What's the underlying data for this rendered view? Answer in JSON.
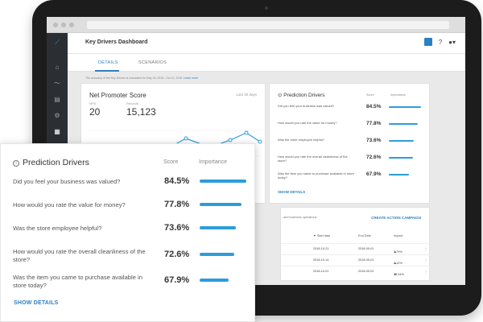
{
  "app": {
    "title": "Key Drivers Dashboard",
    "tabs": [
      {
        "label": "DETAILS",
        "active": true
      },
      {
        "label": "SCENARIOS",
        "active": false
      }
    ],
    "info_text": "The accuracy of the Key Drivers is calculated for May 26, 2018 - Oct 11, 2018.",
    "info_link": "Learn more"
  },
  "header_icons": [
    "tool-icon",
    "help-icon",
    "account-icon"
  ],
  "sidebar_icons": [
    "home-icon",
    "trend-icon",
    "calendar-icon",
    "settings-icon",
    "grid-icon",
    "list-icon",
    "list-icon",
    "list-icon"
  ],
  "nps": {
    "title": "Net Promoter Score",
    "range": "Last 30 days",
    "labels": [
      "NPS",
      "Records"
    ],
    "values": [
      "20",
      "15,123"
    ]
  },
  "prediction_drivers": {
    "title": "Prediction Drivers",
    "score_header": "Score",
    "importance_header": "Importance",
    "rows": [
      {
        "question": "Did you feel your business was valued?",
        "score": "84.5%",
        "importance": 1.0
      },
      {
        "question": "How would you rate the value for money?",
        "score": "77.8%",
        "importance": 0.9
      },
      {
        "question": "Was the store employee helpful?",
        "score": "73.6%",
        "importance": 0.78
      },
      {
        "question": "How would you rate the overall cleanliness of the store?",
        "score": "72.6%",
        "importance": 0.74
      },
      {
        "question": "Was the item you came to purchase available in store today?",
        "score": "67.9%",
        "importance": 0.62
      }
    ],
    "show_details": "SHOW DETAILS"
  },
  "table": {
    "subtitle": "...and business operations.",
    "action": "CREATE ACTION CAMPAIGN",
    "headers": [
      "Start date",
      "End Date",
      "Impact"
    ],
    "rows": [
      {
        "start": "2018-10-21",
        "end": "2018-09-01",
        "direction": "up",
        "impact": "3.79%"
      },
      {
        "start": "2018-10-14",
        "end": "2018-09-01",
        "direction": "up",
        "impact": "2.12%"
      },
      {
        "start": "2018-10-01",
        "end": "2018-09-01",
        "direction": "down",
        "impact": "13.44%"
      }
    ]
  },
  "colors": {
    "accent": "#2d7fc1",
    "bar": "#2d9cdb",
    "sidebar": "#2b2f33"
  }
}
